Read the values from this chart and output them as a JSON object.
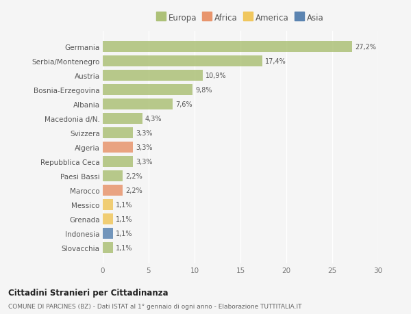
{
  "countries": [
    "Germania",
    "Serbia/Montenegro",
    "Austria",
    "Bosnia-Erzegovina",
    "Albania",
    "Macedonia d/N.",
    "Svizzera",
    "Algeria",
    "Repubblica Ceca",
    "Paesi Bassi",
    "Marocco",
    "Messico",
    "Grenada",
    "Indonesia",
    "Slovacchia"
  ],
  "values": [
    27.2,
    17.4,
    10.9,
    9.8,
    7.6,
    4.3,
    3.3,
    3.3,
    3.3,
    2.2,
    2.2,
    1.1,
    1.1,
    1.1,
    1.1
  ],
  "labels": [
    "27,2%",
    "17,4%",
    "10,9%",
    "9,8%",
    "7,6%",
    "4,3%",
    "3,3%",
    "3,3%",
    "3,3%",
    "2,2%",
    "2,2%",
    "1,1%",
    "1,1%",
    "1,1%",
    "1,1%"
  ],
  "continents": [
    "Europa",
    "Europa",
    "Europa",
    "Europa",
    "Europa",
    "Europa",
    "Europa",
    "Africa",
    "Europa",
    "Europa",
    "Africa",
    "America",
    "America",
    "Asia",
    "Europa"
  ],
  "colors": {
    "Europa": "#adc178",
    "Africa": "#e8956d",
    "America": "#f0c75e",
    "Asia": "#5b84b1"
  },
  "xlim": [
    0,
    30
  ],
  "xticks": [
    0,
    5,
    10,
    15,
    20,
    25,
    30
  ],
  "background_color": "#f5f5f5",
  "grid_color": "#ffffff",
  "title1": "Cittadini Stranieri per Cittadinanza",
  "title2": "COMUNE DI PARCINES (BZ) - Dati ISTAT al 1° gennaio di ogni anno - Elaborazione TUTTITALIA.IT",
  "bar_height": 0.75,
  "legend_entries": [
    "Europa",
    "Africa",
    "America",
    "Asia"
  ]
}
